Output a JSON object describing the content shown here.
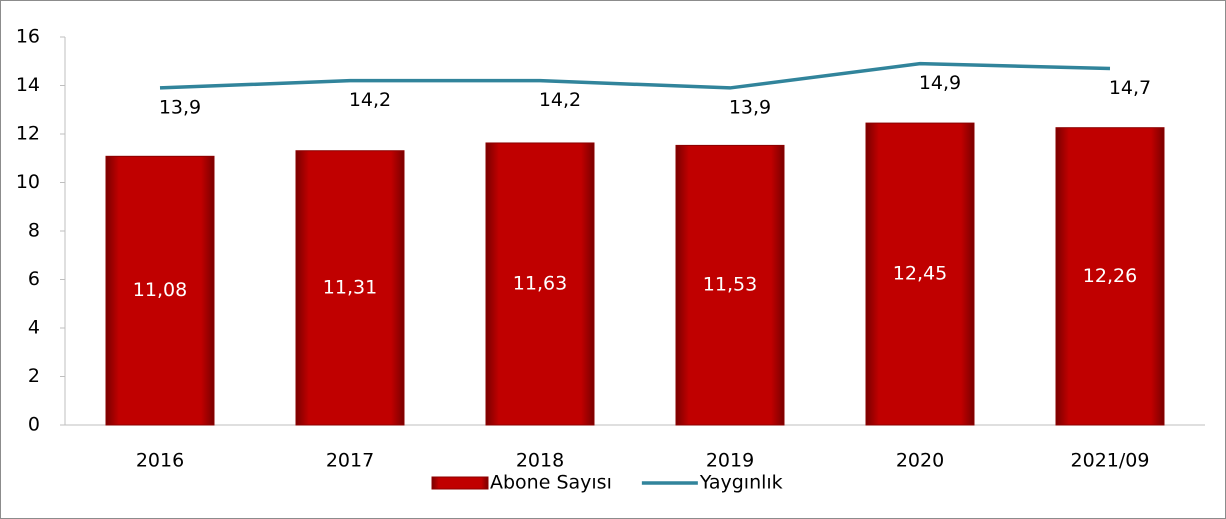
{
  "chart_data": {
    "type": "bar",
    "categories": [
      "2016",
      "2017",
      "2018",
      "2019",
      "2020",
      "2021/09"
    ],
    "series": [
      {
        "name": "Abone Sayısı",
        "type": "bar",
        "color": "#c00000",
        "values": [
          11.08,
          11.31,
          11.63,
          11.53,
          12.45,
          12.26
        ],
        "value_labels": [
          "11,08",
          "11,31",
          "11,63",
          "11,53",
          "12,45",
          "12,26"
        ]
      },
      {
        "name": "Yaygınlık",
        "type": "line",
        "color": "#31849b",
        "values": [
          13.9,
          14.2,
          14.2,
          13.9,
          14.9,
          14.7
        ],
        "value_labels": [
          "13,9",
          "14,2",
          "14,2",
          "13,9",
          "14,9",
          "14,7"
        ]
      }
    ],
    "ylim": [
      0,
      16
    ],
    "yticks": [
      0,
      2,
      4,
      6,
      8,
      10,
      12,
      14,
      16
    ],
    "legend": "bottom"
  }
}
